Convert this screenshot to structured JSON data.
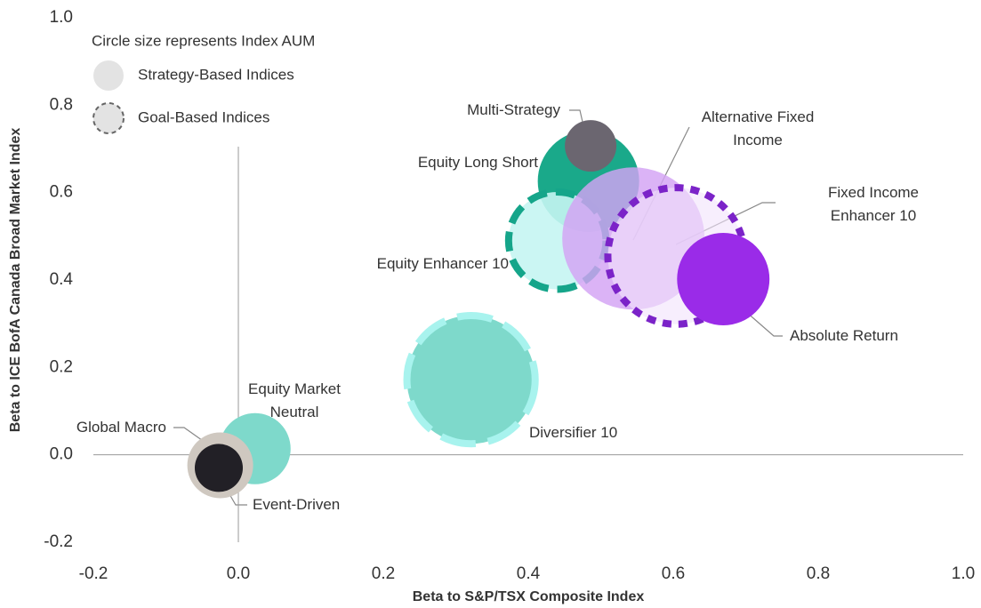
{
  "chart_data": {
    "type": "bubble",
    "x_label": "Beta to S&P/TSX Composite Index",
    "y_label": "Beta to ICE BofA Canada Broad Market Index",
    "legend_title": "Circle size represents Index AUM",
    "xlim": [
      -0.2,
      1.0
    ],
    "ylim": [
      -0.2,
      1.0
    ],
    "xticks": [
      -0.2,
      {
        "value": 0,
        "label": "0.0"
      },
      0.2,
      0.4,
      0.6,
      0.8,
      {
        "value": 1,
        "label": "1.0"
      }
    ],
    "yticks": [
      -0.2,
      {
        "value": 0,
        "label": "0.0"
      },
      0.2,
      0.4,
      0.6,
      0.8,
      {
        "value": 1,
        "label": "1.0"
      }
    ],
    "series": [
      {
        "name": "Strategy-Based Indices",
        "color": "#e3e3e3",
        "points": [
          {
            "name": "Multi-Strategy",
            "x": 0.486,
            "y": 0.707,
            "size": 8.4,
            "color": "#6b6670"
          },
          {
            "name": "Equity Long Short",
            "x": 0.483,
            "y": 0.626,
            "size": 32.5,
            "color": "#1aa98a"
          },
          {
            "name": "Alternative Fixed Income",
            "x": 0.545,
            "y": 0.495,
            "size": 64,
            "color": "#d3a2f4"
          },
          {
            "name": "Absolute Return",
            "x": 0.669,
            "y": 0.402,
            "size": 27,
            "color": "#9a2be8"
          },
          {
            "name": "Equity Market Neutral",
            "x": 0.023,
            "y": 0.014,
            "size": 16,
            "color": "#7ed9cb"
          },
          {
            "name": "Global Macro",
            "x": -0.025,
            "y": -0.024,
            "size": 13.7,
            "color": "#cfc8c0"
          },
          {
            "name": "Event-Driven",
            "x": -0.027,
            "y": -0.03,
            "size": 7.3,
            "color": "#222026"
          }
        ]
      },
      {
        "name": "Goal-Based Indices",
        "color": "#e3e3e3",
        "border_color": "#666666",
        "points": [
          {
            "name": "Equity Enhancer 10",
            "x": 0.44,
            "y": 0.49,
            "size": 30,
            "color": "#c5f5f2",
            "border_color": "#15a58a"
          },
          {
            "name": "Fixed Income Enhancer 10",
            "x": 0.604,
            "y": 0.455,
            "size": 59,
            "color": "#f1e2fb",
            "border_color": "#7b23c8"
          },
          {
            "name": "Diversifier 10",
            "x": 0.321,
            "y": 0.172,
            "size": 52,
            "color": "#7ed9cb",
            "border_color": "#a8f3ee"
          }
        ]
      }
    ]
  }
}
